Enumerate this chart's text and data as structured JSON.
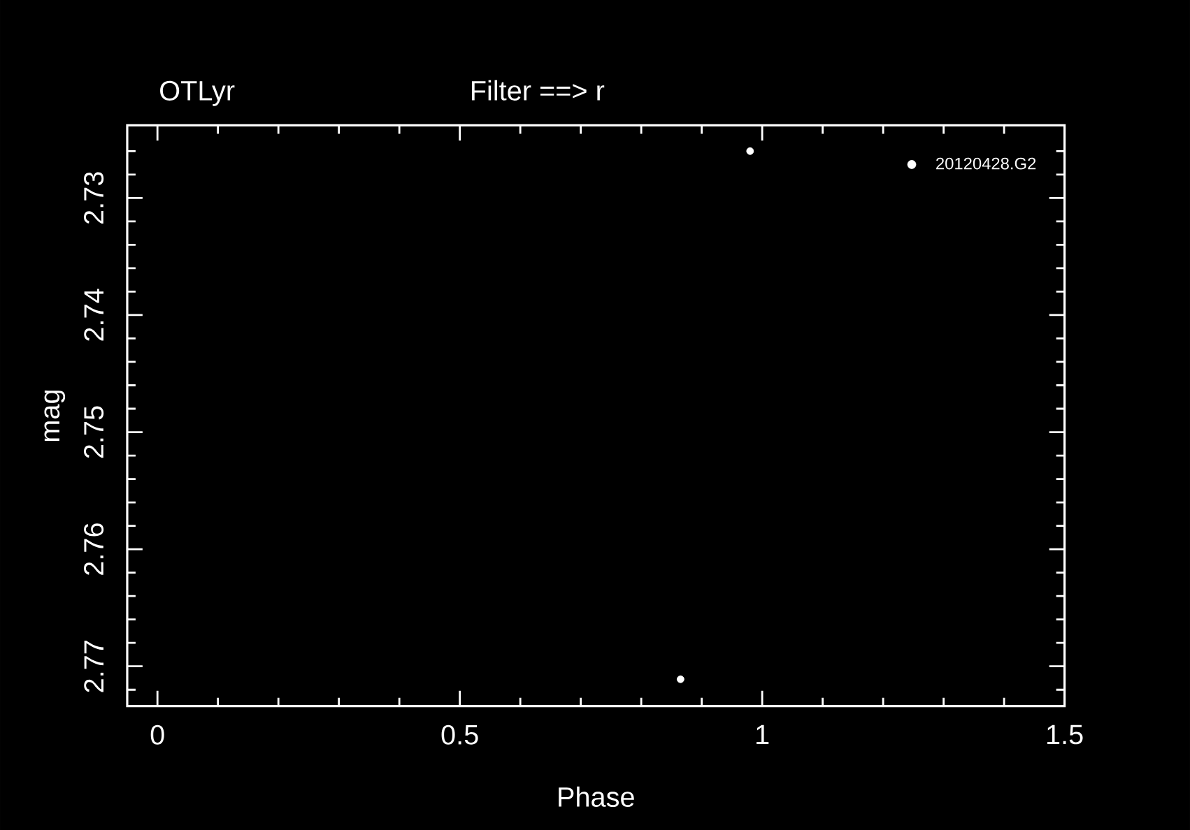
{
  "chart_data": {
    "type": "scatter",
    "title": "OTLyr",
    "subtitle": "Filter ==> r",
    "xlabel": "Phase",
    "ylabel": "mag",
    "series": [
      {
        "name": "20120428.G2",
        "color": "#ffffff",
        "x": [
          0.865,
          0.98
        ],
        "values": [
          2.7711,
          2.726
        ]
      }
    ],
    "xlim": [
      -0.05,
      1.5
    ],
    "ylim": [
      2.7734,
      2.7238
    ],
    "xticks": [
      0,
      {
        "value": 0.1,
        "label": null
      },
      {
        "value": 0.2,
        "label": null
      },
      {
        "value": 0.3,
        "label": null
      },
      {
        "value": 0.4,
        "label": null
      },
      0.5,
      {
        "value": 0.6,
        "label": null
      },
      {
        "value": 0.7,
        "label": null
      },
      {
        "value": 0.8,
        "label": null
      },
      {
        "value": 0.9,
        "label": null
      },
      1,
      {
        "value": 1.1,
        "label": null
      },
      {
        "value": 1.2,
        "label": null
      },
      {
        "value": 1.3,
        "label": null
      },
      {
        "value": 1.4,
        "label": null
      },
      1.5
    ],
    "yticks": [
      {
        "value": 2.726,
        "label": null
      },
      {
        "value": 2.728,
        "label": null
      },
      2.73,
      {
        "value": 2.732,
        "label": null
      },
      {
        "value": 2.734,
        "label": null
      },
      {
        "value": 2.736,
        "label": null
      },
      {
        "value": 2.738,
        "label": null
      },
      2.74,
      {
        "value": 2.742,
        "label": null
      },
      {
        "value": 2.744,
        "label": null
      },
      {
        "value": 2.746,
        "label": null
      },
      {
        "value": 2.748,
        "label": null
      },
      2.75,
      {
        "value": 2.752,
        "label": null
      },
      {
        "value": 2.754,
        "label": null
      },
      {
        "value": 2.756,
        "label": null
      },
      {
        "value": 2.758,
        "label": null
      },
      2.76,
      {
        "value": 2.762,
        "label": null
      },
      {
        "value": 2.764,
        "label": null
      },
      {
        "value": 2.766,
        "label": null
      },
      {
        "value": 2.768,
        "label": null
      },
      2.77,
      {
        "value": 2.772,
        "label": null
      }
    ],
    "legend": "top right",
    "marker": "circle"
  }
}
